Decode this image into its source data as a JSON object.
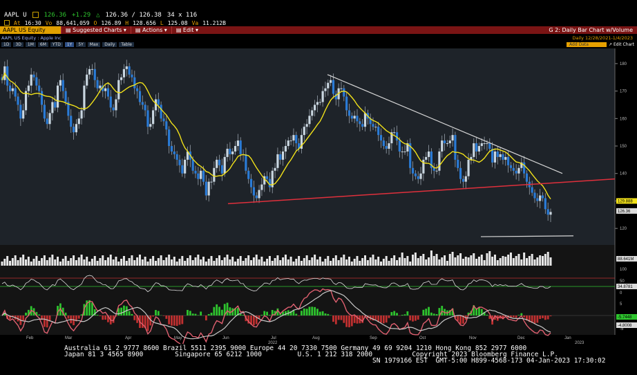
{
  "quote": {
    "ticker": "AAPL U",
    "last": "126.36",
    "change": "+1.29",
    "open_pair": "126.36 / 126.38",
    "size": "34 x 116"
  },
  "quote2": {
    "time_label": "At",
    "time": "16:30",
    "volume_label": "Vo",
    "volume": "88,641,059",
    "open_label": "O",
    "open": "126.89",
    "high_label": "H",
    "high": "128.656",
    "low_label": "L",
    "low": "125.08",
    "val_label": "Va",
    "val": "11.212B"
  },
  "menubar": {
    "security": "AAPL US Equity",
    "suggested": "Suggested Charts",
    "actions": "Actions",
    "edit": "Edit",
    "chart_name": "G 2: Daily Bar Chart w/Volume"
  },
  "subbar": {
    "title": "AAPL US Equity : Apple Inc",
    "period": "Daily   12/28/2021-1/4/2023"
  },
  "toolbar": {
    "ranges": [
      "1D",
      "3D",
      "1M",
      "6M",
      "YTD",
      "1Y",
      "5Y",
      "Max",
      "Daily",
      "Table"
    ],
    "selected": "1Y",
    "add_data": "Add Data",
    "edit_chart": "Edit Chart"
  },
  "chart_data": {
    "type": "candlestick",
    "x_labels": [
      "Feb",
      "Mar",
      "Apr",
      "May",
      "Jun",
      "Jul",
      "Aug",
      "Sep",
      "Oct",
      "Nov",
      "Dec",
      "Jan"
    ],
    "year_labels": [
      "2022",
      "2023"
    ],
    "y_ticks": [
      120,
      130,
      140,
      150,
      160,
      170,
      180
    ],
    "ylim": [
      115,
      183
    ],
    "price_ticker_labels": [
      "129.888",
      "126.36"
    ],
    "volume_label": "88.641M",
    "rsi_ticks": [
      100,
      50,
      0
    ],
    "rsi_label": "34.8781",
    "macd_ticks": [
      5,
      0,
      -5
    ],
    "macd_labels": [
      "-5.7448",
      "-4.8008"
    ],
    "closes": [
      174,
      179,
      172,
      170,
      171,
      168,
      165,
      160,
      163,
      170,
      172,
      176,
      175,
      172,
      170,
      165,
      160,
      158,
      162,
      166,
      164,
      172,
      174,
      170,
      166,
      161,
      157,
      155,
      158,
      160,
      163,
      172,
      176,
      178,
      178,
      174,
      171,
      172,
      170,
      171,
      168,
      164,
      163,
      167,
      174,
      175,
      178,
      179,
      176,
      175,
      171,
      170,
      166,
      165,
      163,
      157,
      158,
      163,
      167,
      165,
      160,
      159,
      156,
      150,
      148,
      147,
      145,
      143,
      140,
      145,
      148,
      145,
      141,
      140,
      138,
      141,
      137,
      132,
      137,
      137,
      142,
      145,
      143,
      140,
      146,
      149,
      147,
      148,
      150,
      152,
      147,
      147,
      141,
      138,
      135,
      132,
      131,
      134,
      136,
      139,
      138,
      135,
      141,
      142,
      147,
      145,
      148,
      150,
      152,
      152,
      154,
      151,
      149,
      154,
      157,
      158,
      161,
      163,
      165,
      166,
      166,
      170,
      171,
      173,
      174,
      169,
      167,
      171,
      171,
      168,
      163,
      161,
      160,
      161,
      159,
      158,
      157,
      162,
      160,
      158,
      157,
      157,
      154,
      152,
      150,
      149,
      151,
      155,
      155,
      152,
      148,
      148,
      148,
      151,
      142,
      140,
      139,
      138,
      140,
      145,
      146,
      148,
      142,
      141,
      141,
      148,
      152,
      151,
      151,
      152,
      154,
      145,
      142,
      138,
      137,
      139,
      145,
      146,
      151,
      148,
      150,
      151,
      151,
      151,
      149,
      144,
      148,
      146,
      147,
      145,
      146,
      143,
      142,
      141,
      140,
      142,
      144,
      140,
      137,
      135,
      133,
      131,
      130,
      132,
      131,
      127,
      125,
      126
    ]
  }
}
